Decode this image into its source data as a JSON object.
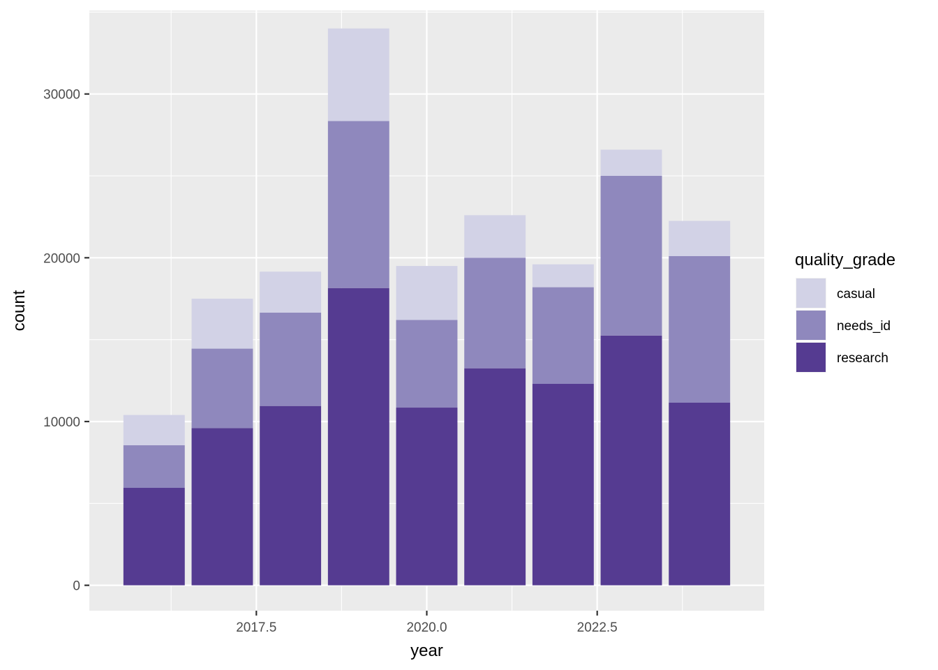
{
  "chart_data": {
    "type": "bar",
    "stacked": true,
    "x": [
      2016,
      2017,
      2018,
      2019,
      2020,
      2021,
      2022,
      2023,
      2024
    ],
    "series": [
      {
        "name": "research",
        "color": "#553B91",
        "values": [
          5950,
          9600,
          10950,
          18150,
          10850,
          13250,
          12300,
          15250,
          11150
        ]
      },
      {
        "name": "needs_id",
        "color": "#8F88BD",
        "values": [
          2600,
          4850,
          5700,
          10200,
          5350,
          6750,
          5900,
          9750,
          8950
        ]
      },
      {
        "name": "casual",
        "color": "#D2D2E6",
        "values": [
          1850,
          3050,
          2500,
          5650,
          3300,
          2600,
          1400,
          1600,
          2150
        ]
      }
    ],
    "xlabel": "year",
    "ylabel": "count",
    "xlim": [
      2015.05,
      2024.95
    ],
    "ylim": [
      -1550,
      35100
    ],
    "x_ticks": [
      2017.5,
      2020.0,
      2022.5
    ],
    "x_tick_labels": [
      "2017.5",
      "2020.0",
      "2022.5"
    ],
    "y_ticks": [
      0,
      10000,
      20000,
      30000
    ],
    "y_tick_labels": [
      "0",
      "10000",
      "20000",
      "30000"
    ],
    "grid": true,
    "legend": {
      "title": "quality_grade",
      "position": "right",
      "items": [
        "casual",
        "needs_id",
        "research"
      ]
    }
  }
}
